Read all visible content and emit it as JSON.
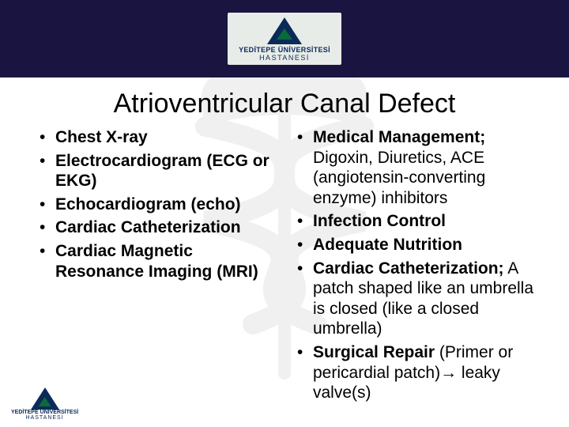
{
  "colors": {
    "header_bg": "#1a1540",
    "logo_blue": "#0a2a5a",
    "logo_green": "#0a6a3a",
    "text": "#000000",
    "background": "#ffffff",
    "watermark_gray": "#888888"
  },
  "typography": {
    "title_fontsize": 34,
    "body_fontsize": 21,
    "font_family": "Arial"
  },
  "logo": {
    "line1": "YEDİTEPE ÜNİVERSİTESİ",
    "line2": "HASTANESİ"
  },
  "title": "Atrioventricular Canal Defect",
  "left_items": [
    {
      "bold": "Chest X-ray",
      "rest": ""
    },
    {
      "bold": "Electrocardiogram (ECG or EKG)",
      "rest": ""
    },
    {
      "bold": "Echocardiogram (echo)",
      "rest": ""
    },
    {
      "bold": "Cardiac Catheterization",
      "rest": ""
    },
    {
      "bold": "Cardiac Magnetic Resonance Imaging (MRI)",
      "rest": ""
    }
  ],
  "right_items": [
    {
      "bold": "Medical Management;",
      "rest": " Digoxin, Diuretics, ACE (angiotensin-converting enzyme) inhibitors"
    },
    {
      "bold": "Infection Control",
      "rest": ""
    },
    {
      "bold": "Adequate Nutrition",
      "rest": ""
    },
    {
      "bold": "Cardiac Catheterization;",
      "rest": " A patch shaped like an umbrella is closed (like a closed umbrella)"
    },
    {
      "bold": "Surgical Repair",
      "rest": " (Primer or pericardial patch)→ leaky valve(s)"
    }
  ]
}
